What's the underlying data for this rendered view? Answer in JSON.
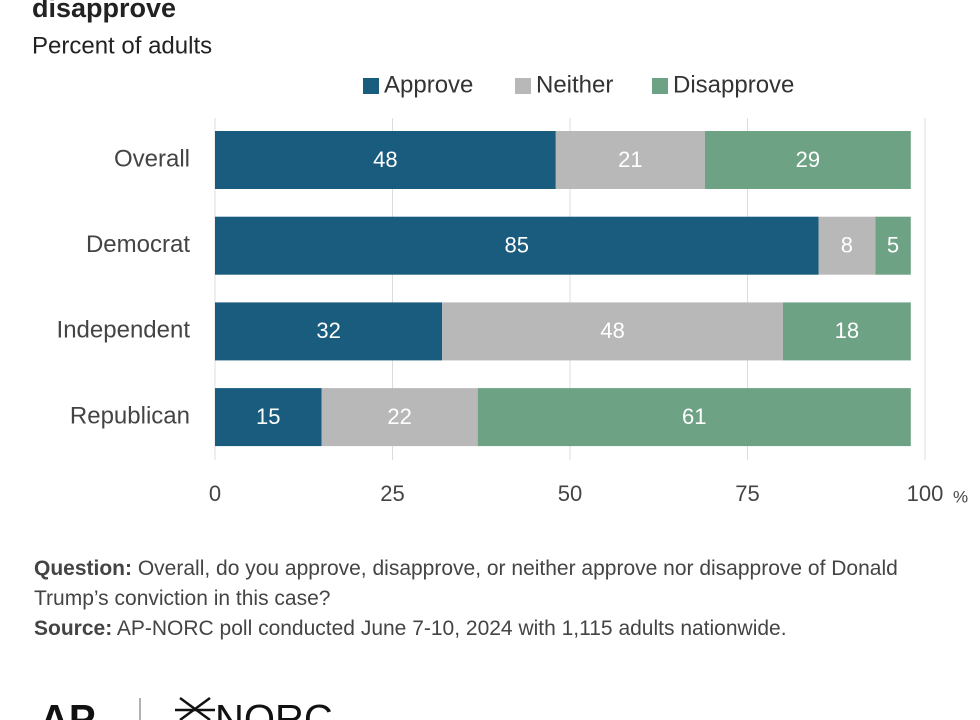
{
  "chart_data": {
    "type": "stacked_bar_horizontal",
    "title": "disapprove",
    "subtitle": "Percent of adults",
    "categories": [
      "Overall",
      "Democrat",
      "Independent",
      "Republican"
    ],
    "series": [
      {
        "name": "Approve",
        "color": "#1a5c7d",
        "values": [
          48,
          85,
          32,
          15
        ]
      },
      {
        "name": "Neither",
        "color": "#b8b8b8",
        "values": [
          21,
          8,
          48,
          22
        ]
      },
      {
        "name": "Disapprove",
        "color": "#6ea285",
        "values": [
          29,
          5,
          18,
          61
        ]
      }
    ],
    "xlim": [
      0,
      100
    ],
    "xticks": [
      0,
      25,
      50,
      75,
      100
    ],
    "x_unit": "%",
    "grid": true
  },
  "footer": {
    "question_label": "Question:",
    "question": "Overall, do you approve, disapprove, or neither approve nor disapprove of Donald Trump’s conviction in this case?",
    "source_label": "Source:",
    "source": "AP-NORC poll conducted June 7-10, 2024 with 1,115 adults nationwide.",
    "logos": [
      "AP",
      "NORC"
    ]
  }
}
